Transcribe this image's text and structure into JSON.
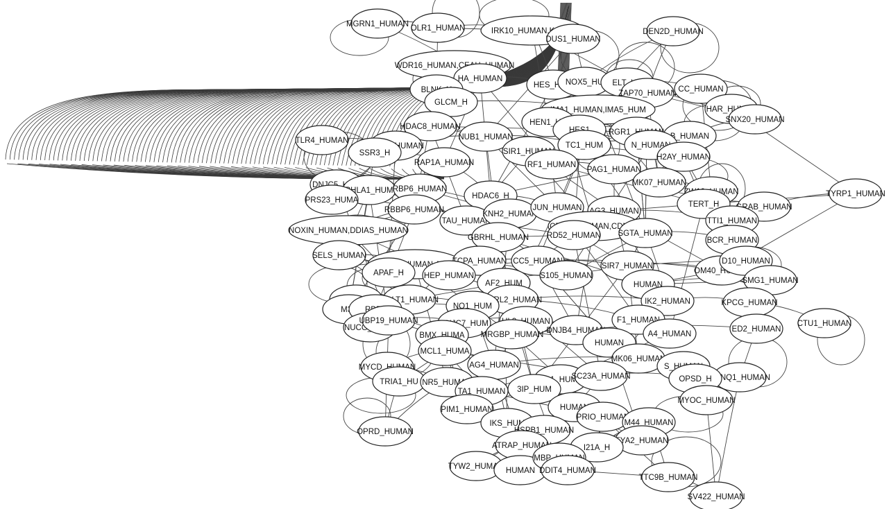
{
  "nodes": [
    {
      "id": "MGRN1",
      "label": "MGRN1_HUMAN"
    },
    {
      "id": "OLR1",
      "label": "OLR1_HUMAN"
    },
    {
      "id": "IRK10",
      "label": "IRK10_HUMAN,KCJ10"
    },
    {
      "id": "DUS1",
      "label": "DUS1_HUMAN"
    },
    {
      "id": "DEN2D",
      "label": "DEN2D_HUMAN"
    },
    {
      "id": "WDR16",
      "label": "WDR16_HUMAN,CEAH_HUMAN"
    },
    {
      "id": "HA",
      "label": "HA_HUMAN"
    },
    {
      "id": "HES",
      "label": "HES_HUM"
    },
    {
      "id": "NOX5",
      "label": "NOX5_HU"
    },
    {
      "id": "ELT",
      "label": "ELT_HU"
    },
    {
      "id": "ZAP70",
      "label": "ZAP70_HUMAN"
    },
    {
      "id": "CC",
      "label": "CC_HUMAN"
    },
    {
      "id": "BLNK",
      "label": "BLNK_H"
    },
    {
      "id": "GLCM",
      "label": "GLCM_H"
    },
    {
      "id": "IMA1",
      "label": "IMA1_HUMAN,IMA5_HUM"
    },
    {
      "id": "HAR",
      "label": "HAR_HUMAN"
    },
    {
      "id": "SNX20",
      "label": "SNX20_HUMAN"
    },
    {
      "id": "HDAC8",
      "label": "HDAC8_HUMAN"
    },
    {
      "id": "HEN1",
      "label": "HEN1_HU"
    },
    {
      "id": "HES1",
      "label": "HES1"
    },
    {
      "id": "RGR1",
      "label": "RGR1_HUMAN"
    },
    {
      "id": "TB",
      "label": "B_HUMAN"
    },
    {
      "id": "TLR4",
      "label": "TLR4_HUMAN"
    },
    {
      "id": "B2L12",
      "label": "B2L12_HUMAN"
    },
    {
      "id": "SSR3",
      "label": "SSR3_H"
    },
    {
      "id": "NUB1",
      "label": "NUB1_HUMAN"
    },
    {
      "id": "SIR1",
      "label": "SIR1_HUMAN"
    },
    {
      "id": "TC1",
      "label": "TC1_HUM"
    },
    {
      "id": "HUMAN1",
      "label": "N_HUMAN"
    },
    {
      "id": "H2AY",
      "label": "H2AY_HUMAN"
    },
    {
      "id": "RAP1A",
      "label": "RAP1A_HUMAN"
    },
    {
      "id": "RF1",
      "label": "RF1_HUMAN"
    },
    {
      "id": "PAG1",
      "label": "PAG1_HUMAN"
    },
    {
      "id": "DNJC5",
      "label": "DNJC5_HUM"
    },
    {
      "id": "PHLA1",
      "label": "PHLA1_HUM"
    },
    {
      "id": "RBP6",
      "label": "RBP6_HUMAN"
    },
    {
      "id": "MK07",
      "label": "MK07_HUMAN"
    },
    {
      "id": "ZW10",
      "label": "ZW10_HUMAN"
    },
    {
      "id": "TYRP1",
      "label": "TYRP1_HUMAN"
    },
    {
      "id": "PRS23",
      "label": "PRS23_HUMA"
    },
    {
      "id": "RBBP6",
      "label": "RBBP6_HUMAN"
    },
    {
      "id": "HDAC6",
      "label": "HDAC6_H"
    },
    {
      "id": "TERT",
      "label": "TERT_H"
    },
    {
      "id": "GRAB",
      "label": "GRAB_HUMAN"
    },
    {
      "id": "TAU",
      "label": "TAU_HUMAN"
    },
    {
      "id": "KNH2",
      "label": "KNH2_HUMAN"
    },
    {
      "id": "JUN",
      "label": "JUN_HUMAN"
    },
    {
      "id": "AG3",
      "label": "AG3_HUMAN"
    },
    {
      "id": "TTI1",
      "label": "TTI1_HUMAN"
    },
    {
      "id": "NOXIN",
      "label": "NOXIN_HUMAN,DDIAS_HUMAN"
    },
    {
      "id": "CD2A1",
      "label": "CD2A1_HUMAN,CDN2A"
    },
    {
      "id": "RD52",
      "label": "RD52_HUMAN"
    },
    {
      "id": "SGTA",
      "label": "SGTA_HUMAN"
    },
    {
      "id": "GBRHL",
      "label": "GBRHL_HUMAN"
    },
    {
      "id": "BCR",
      "label": "BCR_HUMAN"
    },
    {
      "id": "SELS",
      "label": "SELS_HUMAN"
    },
    {
      "id": "AMFR1",
      "label": "AMFR1_HUMAN,AMFR"
    },
    {
      "id": "TCPA",
      "label": "TCPA_HUMAN"
    },
    {
      "id": "CC5",
      "label": "CC5_HUMAN"
    },
    {
      "id": "SIR7",
      "label": "SIR7_HUMAN"
    },
    {
      "id": "OM40",
      "label": "OM40_HUMAN"
    },
    {
      "id": "D10",
      "label": "D10_HUMAN"
    },
    {
      "id": "APAF",
      "label": "APAF_H"
    },
    {
      "id": "HEP",
      "label": "HEP_HUMAN"
    },
    {
      "id": "S105",
      "label": "S105_HUMAN"
    },
    {
      "id": "HUMAN2",
      "label": "HUMAN"
    },
    {
      "id": "SMG1",
      "label": "SMG1_HUMAN"
    },
    {
      "id": "AF2",
      "label": "AF2_HUM"
    },
    {
      "id": "NHLC",
      "label": "NHLC"
    },
    {
      "id": "SOLT1",
      "label": "SOLT1_HUMAN"
    },
    {
      "id": "GBRL2",
      "label": "GBRL2_HUMAN"
    },
    {
      "id": "IK2",
      "label": "IK2_HUMAN"
    },
    {
      "id": "KPCG",
      "label": "KPCG_HUMAN"
    },
    {
      "id": "M3K",
      "label": "M3K"
    },
    {
      "id": "RBP2",
      "label": "RBP2"
    },
    {
      "id": "NO1",
      "label": "NO1_HUM"
    },
    {
      "id": "F1",
      "label": "F1_HUMAN"
    },
    {
      "id": "CTU1",
      "label": "CTU1_HUMAN"
    },
    {
      "id": "NUCG",
      "label": "NUCG_HUMA"
    },
    {
      "id": "UBP19",
      "label": "UBP19_HUMAN"
    },
    {
      "id": "DNJC7",
      "label": "DNJC7_HUM"
    },
    {
      "id": "UL3",
      "label": "UL3_HUMAN"
    },
    {
      "id": "DNJB4",
      "label": "DNJB4_HUMAN"
    },
    {
      "id": "ED2",
      "label": "ED2_HUMAN"
    },
    {
      "id": "BMX",
      "label": "BMX_HUMA"
    },
    {
      "id": "MRGBP",
      "label": "MRGBP_HUMAN"
    },
    {
      "id": "HUMAN3",
      "label": "HUMAN"
    },
    {
      "id": "A4",
      "label": "A4_HUMAN"
    },
    {
      "id": "MCL1",
      "label": "MCL1_HUMA"
    },
    {
      "id": "MK06",
      "label": "MK06_HUMAN"
    },
    {
      "id": "S_HUM",
      "label": "S_HUMAN"
    },
    {
      "id": "MYCD",
      "label": "MYCD_HUMAN"
    },
    {
      "id": "AG4",
      "label": "AG4_HUMAN"
    },
    {
      "id": "KCNQ1",
      "label": "KCNQ1_HUMAN"
    },
    {
      "id": "OPSD",
      "label": "OPSD_H"
    },
    {
      "id": "TRIA1",
      "label": "TRIA1_HU"
    },
    {
      "id": "NR5",
      "label": "NR5_HUMAN"
    },
    {
      "id": "NOS1",
      "label": "NOS1_HUMAN"
    },
    {
      "id": "SC23A",
      "label": "SC23A_HUMAN"
    },
    {
      "id": "MYOC",
      "label": "MYOC_HUMAN"
    },
    {
      "id": "TA1",
      "label": "TA1_HUMAN"
    },
    {
      "id": "IP",
      "label": "3IP_HUM"
    },
    {
      "id": "PIM1",
      "label": "PIM1_HUMAN"
    },
    {
      "id": "HUMAN4",
      "label": "HUMAN"
    },
    {
      "id": "PRIO",
      "label": "PRIO_HUMAN"
    },
    {
      "id": "M44",
      "label": "M44_HUMAN"
    },
    {
      "id": "OPRD",
      "label": "OPRD_HUMAN"
    },
    {
      "id": "IKS",
      "label": "IKS_HUM"
    },
    {
      "id": "HSPB1",
      "label": "HSPB1_HUMAN"
    },
    {
      "id": "FYA2",
      "label": "FYA2_HUMAN"
    },
    {
      "id": "ATRAP",
      "label": "ATRAP_HUMAN"
    },
    {
      "id": "I21A",
      "label": "I21A_H"
    },
    {
      "id": "TYW2",
      "label": "TYW2_HUMAN"
    },
    {
      "id": "HUMAN5",
      "label": "HUMAN"
    },
    {
      "id": "MBP",
      "label": "MBP_HUMAN"
    },
    {
      "id": "DDIT4",
      "label": "DDIT4_HUMAN"
    },
    {
      "id": "TTC9B",
      "label": "TTC9B_HUMAN"
    },
    {
      "id": "SV422",
      "label": "SV422_HUMAN"
    }
  ],
  "edges": [
    [
      "TYRP1",
      "GRAB"
    ],
    [
      "CTU1",
      "KPCG"
    ],
    [
      "SV422",
      "TTC9B"
    ],
    [
      "TTC9B",
      "M44"
    ],
    [
      "SV422",
      "KCNQ1"
    ],
    [
      "DEN2D",
      "ZAP70"
    ],
    [
      "DEN2D",
      "NOX5"
    ],
    [
      "OPRD",
      "NR5"
    ],
    [
      "TLR4",
      "B2L12"
    ],
    [
      "SELS",
      "AMFR1"
    ],
    [
      "NOXIN",
      "RBBP6"
    ],
    [
      "MGRN1",
      "HA"
    ],
    [
      "OLR1",
      "BLNK"
    ],
    [
      "IRK10",
      "HES"
    ],
    [
      "DUS1",
      "NOX5"
    ],
    [
      "SSR3",
      "RAP1A"
    ],
    [
      "B2L12",
      "NUB1"
    ],
    [
      "HDAC8",
      "SIR1"
    ],
    [
      "PHLA1",
      "TAU"
    ],
    [
      "DNJC5",
      "RBP6"
    ],
    [
      "PRS23",
      "RBBP6"
    ],
    [
      "RBP6",
      "KNH2"
    ],
    [
      "TAU",
      "JUN"
    ],
    [
      "KNH2",
      "CD2A1"
    ],
    [
      "JUN",
      "SGTA"
    ],
    [
      "AG3",
      "TTI1"
    ],
    [
      "SGTA",
      "BCR"
    ],
    [
      "TCPA",
      "SIR7"
    ],
    [
      "CC5",
      "OM40"
    ],
    [
      "S105",
      "D10"
    ],
    [
      "HEP",
      "GBRL2"
    ],
    [
      "SOLT1",
      "NO1"
    ],
    [
      "GBRL2",
      "IK2"
    ],
    [
      "IK2",
      "KPCG"
    ],
    [
      "UBP19",
      "DNJC7"
    ],
    [
      "DNJC7",
      "UL3"
    ],
    [
      "UL3",
      "DNJB4"
    ],
    [
      "DNJB4",
      "ED2"
    ],
    [
      "BMX",
      "MRGBP"
    ],
    [
      "MRGBP",
      "A4"
    ],
    [
      "MCL1",
      "AG4"
    ],
    [
      "AG4",
      "MK06"
    ],
    [
      "MK06",
      "KCNQ1"
    ],
    [
      "MYCD",
      "NR5"
    ],
    [
      "NR5",
      "TA1"
    ],
    [
      "TA1",
      "NOS1"
    ],
    [
      "NOS1",
      "SC23A"
    ],
    [
      "SC23A",
      "OPSD"
    ],
    [
      "PIM1",
      "IKS"
    ],
    [
      "IKS",
      "HSPB1"
    ],
    [
      "HSPB1",
      "PRIO"
    ],
    [
      "PRIO",
      "FYA2"
    ],
    [
      "ATRAP",
      "MBP"
    ],
    [
      "TYW2",
      "HUMAN5"
    ],
    [
      "MBP",
      "DDIT4"
    ],
    [
      "I21A",
      "M44"
    ],
    [
      "NUCG",
      "SOLT1"
    ],
    [
      "NHLC",
      "RBP2"
    ],
    [
      "M3K",
      "UBP19"
    ],
    [
      "APAF",
      "HEP"
    ],
    [
      "AMFR1",
      "TCPA"
    ],
    [
      "SELS",
      "APAF"
    ],
    [
      "GLCM",
      "IMA1"
    ],
    [
      "IMA1",
      "ZAP70"
    ],
    [
      "HEN1",
      "RGR1"
    ],
    [
      "RGR1",
      "H2AY"
    ],
    [
      "TC1",
      "HUMAN1"
    ],
    [
      "HUMAN1",
      "MK07"
    ],
    [
      "MK07",
      "ZW10"
    ],
    [
      "ZW10",
      "TERT"
    ],
    [
      "TERT",
      "GRAB"
    ],
    [
      "RF1",
      "PAG1"
    ],
    [
      "PAG1",
      "AG3"
    ],
    [
      "HDAC6",
      "JUN"
    ],
    [
      "CD2A1",
      "RD52"
    ],
    [
      "RD52",
      "HUMAN2"
    ],
    [
      "HUMAN2",
      "SMG1"
    ],
    [
      "OM40",
      "SMG1"
    ],
    [
      "AF2",
      "S105"
    ],
    [
      "F1",
      "A4"
    ],
    [
      "HUMAN3",
      "MK06"
    ],
    [
      "S_HUM",
      "MYOC"
    ],
    [
      "IP",
      "HUMAN4"
    ],
    [
      "HUMAN4",
      "PRIO"
    ],
    [
      "ELT",
      "CC"
    ],
    [
      "CC",
      "HAR"
    ],
    [
      "HAR",
      "SNX20"
    ],
    [
      "HES",
      "ELT"
    ],
    [
      "WDR16",
      "HA"
    ],
    [
      "HA",
      "HES"
    ],
    [
      "BLNK",
      "GLCM"
    ],
    [
      "NUB1",
      "TC1"
    ],
    [
      "SIR1",
      "RF1"
    ],
    [
      "RAP1A",
      "HDAC6"
    ],
    [
      "RBBP6",
      "TAU"
    ],
    [
      "GBRHL",
      "CC5"
    ],
    [
      "TRIA1",
      "MYCD"
    ],
    [
      "OPSD",
      "MYOC"
    ],
    [
      "MYOC",
      "KCNQ1"
    ],
    [
      "DDIT4",
      "FYA2"
    ],
    [
      "M44",
      "FYA2"
    ],
    [
      "ED2",
      "KPCG"
    ],
    [
      "D10",
      "SMG1"
    ],
    [
      "BCR",
      "D10"
    ],
    [
      "TTI1",
      "GRAB"
    ],
    [
      "HES1",
      "RGR1"
    ],
    [
      "SNX20",
      "TB"
    ],
    [
      "TB",
      "H2AY"
    ],
    [
      "ZAP70",
      "HAR"
    ],
    [
      "DNJC5",
      "PHLA1"
    ],
    [
      "MGRN1",
      "OLR1"
    ],
    [
      "OLR1",
      "IRK10"
    ],
    [
      "IRK10",
      "DUS1"
    ],
    [
      "WDR16",
      "BLNK"
    ],
    [
      "HDAC8",
      "B2L12"
    ],
    [
      "SSR3",
      "B2L12"
    ],
    [
      "PRS23",
      "PHLA1"
    ],
    [
      "NOXIN",
      "SELS"
    ],
    [
      "NUCG",
      "NHLC"
    ],
    [
      "M3K",
      "NHLC"
    ],
    [
      "UBP19",
      "BMX"
    ],
    [
      "BMX",
      "MCL1"
    ],
    [
      "MCL1",
      "MYCD"
    ],
    [
      "TRIA1",
      "NR5"
    ],
    [
      "OPRD",
      "TRIA1"
    ],
    [
      "PIM1",
      "TA1"
    ],
    [
      "TYW2",
      "ATRAP"
    ],
    [
      "ATRAP",
      "HSPB1"
    ],
    [
      "I21A",
      "PRIO"
    ],
    [
      "SC23A",
      "MK06"
    ],
    [
      "GBRL2",
      "F1"
    ],
    [
      "SIR7",
      "OM40"
    ],
    [
      "TCPA",
      "GBRHL"
    ],
    [
      "SGTA",
      "IK2"
    ],
    [
      "AG3",
      "SGTA"
    ]
  ],
  "self_loops": [
    "OPRD",
    "MYCD",
    "TRIA1",
    "NUCG",
    "NHLC",
    "SELS",
    "APAF",
    "DEN2D",
    "ZW10",
    "TERT",
    "HAR",
    "CC",
    "SNX20",
    "KCNQ1",
    "MYOC",
    "CTU1",
    "SMG1",
    "TTC9B",
    "WDR16",
    "DUS1",
    "IRK10",
    "OLR1",
    "MGRN1",
    "TLR4",
    "ZAP70",
    "ELT",
    "AMFR1",
    "HES1"
  ]
}
